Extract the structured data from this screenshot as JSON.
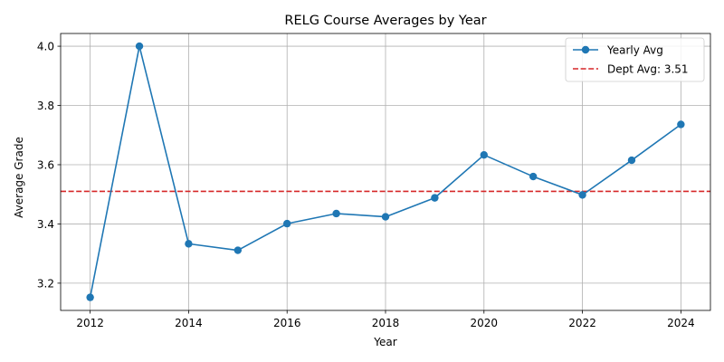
{
  "chart_data": {
    "type": "line",
    "title": "RELG Course Averages by Year",
    "xlabel": "Year",
    "ylabel": "Average Grade",
    "x": [
      2012,
      2013,
      2014,
      2015,
      2016,
      2017,
      2018,
      2019,
      2020,
      2021,
      2022,
      2023,
      2024
    ],
    "xlim": [
      2011.4,
      2024.6
    ],
    "ylim": [
      3.108,
      4.043
    ],
    "xticks": [
      "2012",
      "2014",
      "2016",
      "2018",
      "2020",
      "2022",
      "2024"
    ],
    "yticks": [
      "3.2",
      "3.4",
      "3.6",
      "3.8",
      "4.0"
    ],
    "grid": true,
    "legend_position": "top-right",
    "series": [
      {
        "name": "Yearly Avg",
        "color": "#1f77b4",
        "marker": "circle",
        "values": [
          3.152,
          4.0,
          3.333,
          3.311,
          3.401,
          3.435,
          3.424,
          3.488,
          3.633,
          3.56,
          3.498,
          3.615,
          3.736
        ]
      }
    ],
    "reference_lines": [
      {
        "name": "Dept Avg: 3.51",
        "value": 3.51,
        "color": "#d62728",
        "style": "dashed"
      }
    ]
  }
}
